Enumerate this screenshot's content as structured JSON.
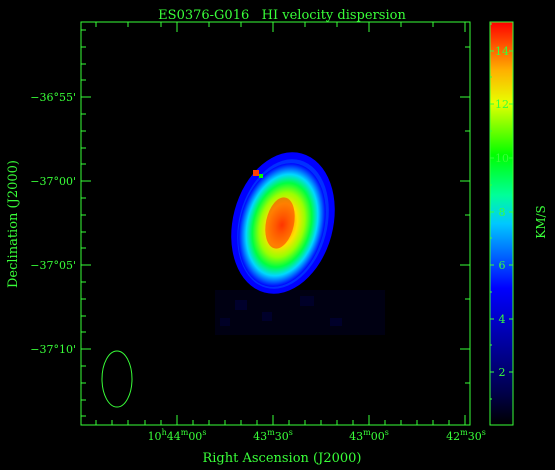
{
  "title": "ES0376-G016   HI velocity dispersion",
  "axes": {
    "x_label": "Right Ascension (J2000)",
    "y_label": "Declination (J2000)",
    "colorbar_label": "KM/S",
    "x_ticks": [
      {
        "pre": "10",
        "h": "h",
        "mid": "44",
        "m": "m",
        "num": "00",
        "s": "s"
      },
      {
        "pre": "",
        "h": "",
        "mid": "43",
        "m": "m",
        "num": "30",
        "s": "s"
      },
      {
        "pre": "",
        "h": "",
        "mid": "43",
        "m": "m",
        "num": "00",
        "s": "s"
      },
      {
        "pre": "",
        "h": "",
        "mid": "42",
        "m": "m",
        "num": "30",
        "s": "s"
      }
    ],
    "y_ticks": [
      "−36°55'",
      "−37°00'",
      "−37°05'",
      "−37°10'"
    ],
    "colorbar_ticks": [
      "2",
      "4",
      "6",
      "8",
      "10",
      "12",
      "14"
    ]
  },
  "colorbar": {
    "min": 0,
    "max": 15,
    "unit": "KM/S"
  },
  "colors": {
    "axis": "#39ff39",
    "background": "#000000",
    "colormap": [
      "#000000",
      "#0000ff",
      "#00ffff",
      "#00ff00",
      "#ffff00",
      "#ff0000"
    ]
  },
  "map": {
    "peak_dispersion": 14,
    "outer_dispersion": 4,
    "beam": "ellipse"
  }
}
